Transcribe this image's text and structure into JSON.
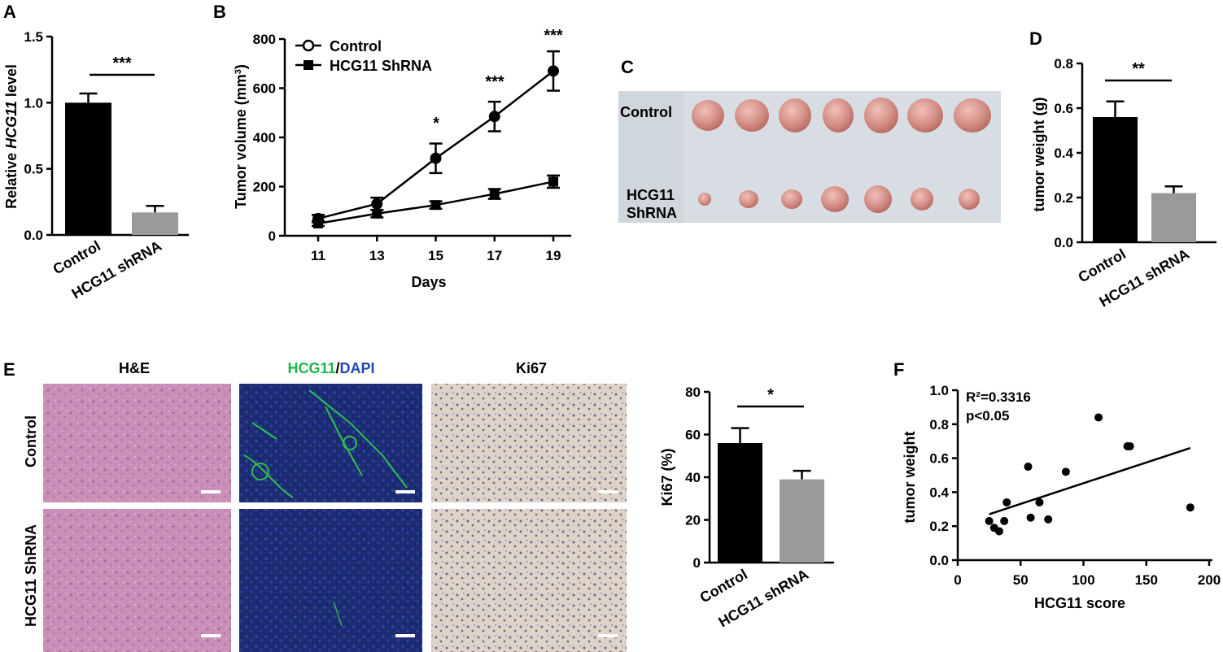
{
  "panels": {
    "A": "A",
    "B": "B",
    "C": "C",
    "D": "D",
    "E": "E",
    "F": "F"
  },
  "panelA": {
    "ylabel_prefix": "Relative ",
    "ylabel_italic": "HCG11",
    "ylabel_suffix": " level",
    "categories": [
      "Control",
      "HCG11 shRNA"
    ],
    "values": [
      1.0,
      0.17
    ],
    "errors": [
      0.07,
      0.05
    ],
    "yticks": [
      "0.0",
      "0.5",
      "1.0",
      "1.5"
    ],
    "ylim": [
      0,
      1.5
    ],
    "significance": "***",
    "colors": [
      "#000000",
      "#9a9a9a"
    ]
  },
  "panelB": {
    "ylabel": "Tumor volume (mm",
    "ylabel_sup": "3",
    "ylabel_close": ")",
    "xlabel": "Days",
    "xticks": [
      "11",
      "13",
      "15",
      "17",
      "19"
    ],
    "yticks": [
      "0",
      "200",
      "400",
      "600",
      "800"
    ],
    "ylim": [
      0,
      800
    ],
    "legend": [
      "Control",
      "HCG11 ShRNA"
    ],
    "significance": [
      "*",
      "***",
      "***"
    ]
  },
  "panelC": {
    "row1": "Control",
    "row2a": "HCG11",
    "row2b": "ShRNA",
    "background": "#cfd6dc",
    "tumor_color": "#d38f86"
  },
  "panelD": {
    "ylabel": "tumor weight (g)",
    "categories": [
      "Control",
      "HCG11 shRNA"
    ],
    "values": [
      0.56,
      0.22
    ],
    "errors": [
      0.07,
      0.03
    ],
    "yticks": [
      "0.0",
      "0.2",
      "0.4",
      "0.6",
      "0.8"
    ],
    "ylim": [
      0,
      0.8
    ],
    "significance": "**"
  },
  "panelE": {
    "col1": "H&E",
    "col2_green": "HCG11",
    "col2_sep": "/",
    "col2_blue": "DAPI",
    "col3": "Ki67",
    "row1": "Control",
    "row2": "HCG11 ShRNA",
    "he_color": "#c98fb6",
    "if_color": "#1d2c72",
    "ki67_color": "#ddd3c9"
  },
  "panelEbar": {
    "ylabel": "Ki67 (%)",
    "categories": [
      "Control",
      "HCG11 shRNA"
    ],
    "values": [
      56,
      39
    ],
    "errors": [
      7,
      4
    ],
    "yticks": [
      "0",
      "20",
      "40",
      "60",
      "80"
    ],
    "ylim": [
      0,
      80
    ],
    "significance": "*"
  },
  "panelF": {
    "ylabel": "tumor weight",
    "xlabel": "HCG11 score",
    "r2": "R²=0.3316",
    "p": "p<0.05",
    "xticks": [
      "0",
      "50",
      "100",
      "150",
      "200"
    ],
    "yticks": [
      "0.0",
      "0.2",
      "0.4",
      "0.6",
      "0.8",
      "1.0"
    ]
  },
  "chart_data": [
    {
      "type": "bar",
      "panel": "A",
      "categories": [
        "Control",
        "HCG11 shRNA"
      ],
      "values": [
        1.0,
        0.17
      ],
      "errors": [
        0.07,
        0.05
      ],
      "ylabel": "Relative HCG11 level",
      "ylim": [
        0,
        1.5
      ],
      "annotations": [
        "***"
      ]
    },
    {
      "type": "line",
      "panel": "B",
      "x": [
        11,
        13,
        15,
        17,
        19
      ],
      "series": [
        {
          "name": "Control",
          "values": [
            70,
            130,
            315,
            485,
            670
          ],
          "errors": [
            15,
            25,
            60,
            60,
            80
          ]
        },
        {
          "name": "HCG11 ShRNA",
          "values": [
            50,
            90,
            125,
            170,
            220
          ],
          "errors": [
            10,
            15,
            15,
            20,
            25
          ]
        }
      ],
      "xlabel": "Days",
      "ylabel": "Tumor volume (mm3)",
      "ylim": [
        0,
        800
      ],
      "annotations": [
        "*",
        "***",
        "***"
      ]
    },
    {
      "type": "bar",
      "panel": "D",
      "categories": [
        "Control",
        "HCG11 shRNA"
      ],
      "values": [
        0.56,
        0.22
      ],
      "errors": [
        0.07,
        0.03
      ],
      "ylabel": "tumor weight (g)",
      "ylim": [
        0,
        0.8
      ],
      "annotations": [
        "**"
      ]
    },
    {
      "type": "bar",
      "panel": "E",
      "categories": [
        "Control",
        "HCG11 shRNA"
      ],
      "values": [
        56,
        39
      ],
      "errors": [
        7,
        4
      ],
      "ylabel": "Ki67 (%)",
      "ylim": [
        0,
        80
      ],
      "annotations": [
        "*"
      ]
    },
    {
      "type": "scatter",
      "panel": "F",
      "x": [
        25,
        29,
        33,
        37,
        39,
        56,
        58,
        65,
        72,
        86,
        112,
        135,
        137,
        185
      ],
      "y": [
        0.23,
        0.19,
        0.17,
        0.23,
        0.34,
        0.55,
        0.25,
        0.34,
        0.24,
        0.52,
        0.84,
        0.67,
        0.67,
        0.31
      ],
      "fit_line": {
        "x": [
          25,
          185
        ],
        "y": [
          0.27,
          0.66
        ]
      },
      "xlabel": "HCG11 score",
      "ylabel": "tumor weight",
      "xlim": [
        0,
        200
      ],
      "ylim": [
        0,
        1.0
      ],
      "annotations": [
        "R²=0.3316",
        "p<0.05"
      ]
    }
  ]
}
